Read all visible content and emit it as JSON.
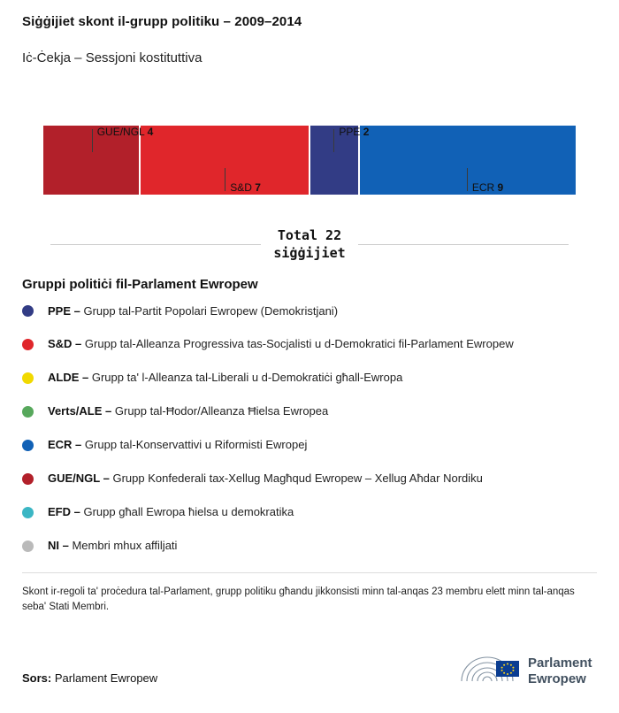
{
  "header": {
    "title": "Siġġijiet skont il-grupp politiku – 2009–2014",
    "subtitle": "Iċ-Ċekja – Sessjoni kostituttiva"
  },
  "chart_data": {
    "type": "bar",
    "variant": "stacked-horizontal",
    "title": "Siġġijiet skont il-grupp politiku – 2009–2014",
    "subtitle": "Iċ-Ċekja – Sessjoni kostituttiva",
    "total": 22,
    "total_label_line1": "Total 22",
    "total_label_line2": "siġġijiet",
    "categories": [
      "GUE/NGL",
      "S&D",
      "PPE",
      "ECR"
    ],
    "values": [
      4,
      7,
      2,
      9
    ],
    "segments": [
      {
        "label": "GUE/NGL",
        "value": 4,
        "color": "#b2202a",
        "callout": "above"
      },
      {
        "label": "S&D",
        "value": 7,
        "color": "#e0262b",
        "callout": "below"
      },
      {
        "label": "PPE",
        "value": 2,
        "color": "#323c85",
        "callout": "above"
      },
      {
        "label": "ECR",
        "value": 9,
        "color": "#1161b6",
        "callout": "below"
      }
    ]
  },
  "legend": {
    "heading": "Gruppi politiċi fil-Parlament Ewropew",
    "items": [
      {
        "abbr": "PPE –",
        "desc": "Grupp tal-Partit Popolari Ewropew (Demokristjani)",
        "color": "#323c85"
      },
      {
        "abbr": "S&D –",
        "desc": "Grupp tal-Alleanza Progressiva tas-Socjalisti u d-Demokratici fil-Parlament Ewropew",
        "color": "#e0262b"
      },
      {
        "abbr": "ALDE –",
        "desc": "Grupp ta' l-Alleanza tal-Liberali u d-Demokratiċi għall-Ewropa",
        "color": "#f1d900"
      },
      {
        "abbr": "Verts/ALE –",
        "desc": "Grupp tal-Ħodor/Alleanza Ħielsa Ewropea",
        "color": "#57a85c"
      },
      {
        "abbr": "ECR –",
        "desc": "Grupp tal-Konservattivi u Riformisti Ewropej",
        "color": "#1161b6"
      },
      {
        "abbr": "GUE/NGL –",
        "desc": "Grupp Konfederali tax-Xellug Magħqud Ewropew – Xellug Aħdar Nordiku",
        "color": "#b2202a"
      },
      {
        "abbr": "EFD –",
        "desc": "Grupp għall Ewropa ħielsa u demokratika",
        "color": "#3bb6c4"
      },
      {
        "abbr": "NI –",
        "desc": "Membri mhux affiljati",
        "color": "#bababa"
      }
    ]
  },
  "footnote": "Skont ir-regoli ta' proċedura tal-Parlament, grupp politiku għandu jikkonsisti minn tal-anqas 23 membru elett minn tal-anqas seba' Stati Membri.",
  "source": {
    "label": "Sors:",
    "value": " Parlament Ewropew"
  },
  "logo": {
    "line1": "Parlament",
    "line2": "Ewropew",
    "text_color": "#41505f"
  }
}
